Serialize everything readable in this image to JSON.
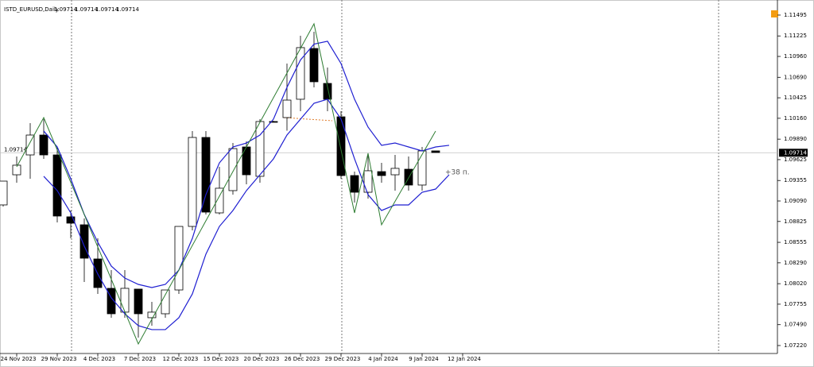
{
  "chart_data": {
    "type": "candlestick",
    "title": "ISTD_EURUSD,Daily",
    "header_values": [
      1.09714,
      1.09714,
      1.09714,
      1.09714
    ],
    "annotation": "+38 п.",
    "current_price": 1.09714,
    "bull_color": "#ffffff",
    "bear_color": "#000000",
    "categories": [
      null,
      "24 Nov 2023",
      null,
      null,
      "29 Nov 2023",
      null,
      null,
      "4 Dec 2023",
      null,
      null,
      "7 Dec 2023",
      null,
      null,
      "12 Dec 2023",
      null,
      null,
      "15 Dec 2023",
      null,
      null,
      "20 Dec 2023",
      null,
      null,
      "26 Dec 2023",
      null,
      null,
      "29 Dec 2023",
      null,
      null,
      "4 Jan 2024",
      null,
      null,
      "9 Jan 2024",
      null,
      null,
      "12 Jan 2024"
    ],
    "open": [
      1.09039,
      1.09429,
      1.09686,
      1.09943,
      1.09686,
      1.08885,
      1.08782,
      1.0834,
      1.0796,
      1.07652,
      1.0795,
      1.0758,
      1.07631,
      1.07939,
      1.08761,
      1.09912,
      1.08936,
      1.09224,
      1.09789,
      1.09409,
      1.10118,
      1.10169,
      1.10406,
      1.11063,
      1.10611,
      1.10179,
      1.09419,
      1.09203,
      1.0947,
      1.09429,
      1.09501,
      1.09296,
      1.09738,
      null,
      null
    ],
    "high": [
      1.09347,
      1.09666,
      1.10097,
      1.10149,
      1.09789,
      1.08967,
      1.08864,
      1.08607,
      1.08196,
      1.08196,
      1.07939,
      1.07785,
      1.07939,
      1.08761,
      1.09995,
      1.09995,
      1.09532,
      1.0984,
      1.09861,
      1.10149,
      1.10128,
      1.10868,
      1.11228,
      1.11279,
      1.10817,
      1.10251,
      1.0947,
      1.09686,
      1.09583,
      1.09686,
      1.09666,
      1.09789,
      1.09738,
      null,
      null
    ],
    "low": [
      1.09018,
      1.09327,
      1.09378,
      1.09635,
      1.08813,
      1.08607,
      1.08042,
      1.07888,
      1.0758,
      1.0758,
      1.07323,
      1.07477,
      1.0758,
      1.07888,
      1.0871,
      1.08916,
      1.08916,
      1.09172,
      1.09306,
      1.09327,
      1.10108,
      1.09999,
      1.10251,
      1.1056,
      1.10251,
      1.09378,
      1.0907,
      1.09121,
      1.09327,
      1.09224,
      1.09224,
      1.09224,
      1.09717,
      null,
      null
    ],
    "close": [
      1.09347,
      1.09553,
      1.09943,
      1.09686,
      1.08895,
      1.08803,
      1.0835,
      1.0797,
      1.07631,
      1.0796,
      1.07631,
      1.07652,
      1.07939,
      1.08761,
      1.09912,
      1.08946,
      1.09255,
      1.09768,
      1.09429,
      1.10118,
      1.10108,
      1.10395,
      1.11074,
      1.10632,
      1.10406,
      1.09419,
      1.09203,
      1.09481,
      1.09419,
      1.09512,
      1.09296,
      1.09738,
      1.09717,
      null,
      null
    ],
    "series": [
      {
        "name": "Upper",
        "color": "#1f1fd1",
        "values": [
          null,
          null,
          null,
          1.09995,
          1.09789,
          1.09378,
          1.08916,
          1.08556,
          1.08248,
          1.08093,
          1.08011,
          1.0797,
          1.08011,
          1.08196,
          1.08607,
          1.09172,
          1.09583,
          1.09789,
          1.0984,
          1.09943,
          1.10149,
          1.1056,
          1.10914,
          1.11119,
          1.11156,
          1.10868,
          1.10406,
          1.10046,
          1.0981,
          1.0984,
          1.09789,
          1.09738,
          1.09789,
          1.0981,
          null
        ]
      },
      {
        "name": "Lower",
        "color": "#1f1fd1",
        "values": [
          null,
          null,
          null,
          1.09409,
          1.09224,
          1.08936,
          1.08505,
          1.08145,
          1.07837,
          1.07631,
          1.07477,
          1.07426,
          1.07426,
          1.0758,
          1.07888,
          1.08402,
          1.08761,
          1.08967,
          1.09224,
          1.09429,
          1.09635,
          1.09943,
          1.10149,
          1.10354,
          1.10406,
          1.10149,
          1.09635,
          1.09172,
          1.08967,
          1.09039,
          1.09039,
          1.09203,
          1.09244,
          1.09429,
          null
        ]
      }
    ],
    "zigzag": {
      "name": "ZigZag",
      "color": "#2e7d32",
      "x": [
        1,
        3,
        10,
        23,
        26,
        27,
        28,
        32
      ],
      "values": [
        1.09532,
        1.10169,
        1.07241,
        1.11382,
        1.08936,
        1.09707,
        1.08782,
        1.09995
      ]
    },
    "ylim": [
      1.07117,
      1.1169
    ],
    "yticks": [
      1.11495,
      1.11225,
      {
        "value": 1.1096,
        "label": "1.10960"
      },
      {
        "value": 1.1069,
        "label": "1.10690"
      },
      1.10425,
      {
        "value": 1.1016,
        "label": "1.10160"
      },
      {
        "value": 1.0989,
        "label": "1.09890"
      },
      1.09625,
      1.09355,
      {
        "value": 1.0909,
        "label": "1.09090"
      },
      1.08825,
      1.08555,
      {
        "value": 1.0829,
        "label": "1.08290"
      },
      {
        "value": 1.0802,
        "label": "1.08020"
      },
      1.07755,
      {
        "value": 1.0749,
        "label": "1.07490"
      },
      {
        "value": 1.0722,
        "label": "1.07220"
      }
    ]
  }
}
